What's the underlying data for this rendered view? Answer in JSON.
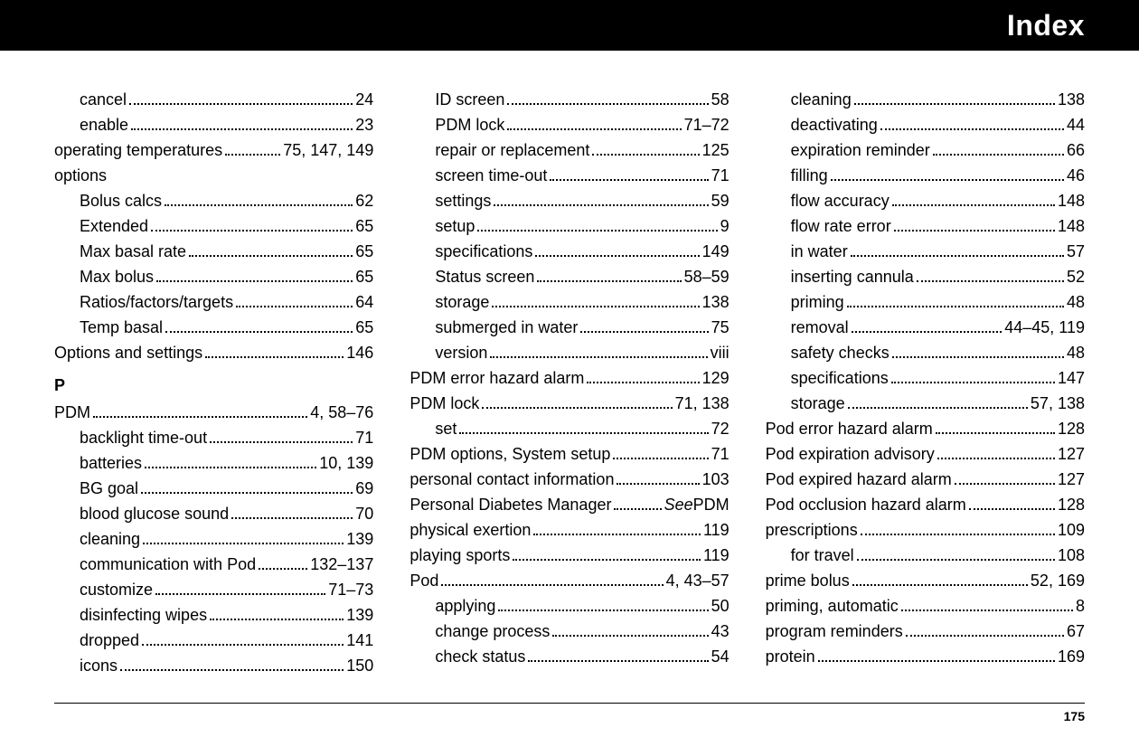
{
  "header": {
    "title": "Index"
  },
  "footer": {
    "pageNumber": "175"
  },
  "columns": [
    [
      {
        "label": "cancel",
        "page": "24",
        "indent": 1
      },
      {
        "label": "enable",
        "page": "23",
        "indent": 1
      },
      {
        "label": "operating temperatures",
        "page": "75, 147, 149",
        "indent": 0
      },
      {
        "label": "options",
        "page": "",
        "indent": 0,
        "noDots": true
      },
      {
        "label": "Bolus calcs",
        "page": "62",
        "indent": 1
      },
      {
        "label": "Extended",
        "page": "65",
        "indent": 1
      },
      {
        "label": "Max basal rate",
        "page": "65",
        "indent": 1
      },
      {
        "label": "Max bolus",
        "page": "65",
        "indent": 1
      },
      {
        "label": "Ratios/factors/targets",
        "page": "64",
        "indent": 1
      },
      {
        "label": "Temp basal",
        "page": "65",
        "indent": 1
      },
      {
        "label": "Options and settings",
        "page": " 146",
        "indent": 0
      },
      {
        "letter": "P"
      },
      {
        "label": "PDM",
        "page": "4, 58–76",
        "indent": 0
      },
      {
        "label": "backlight time-out",
        "page": "71",
        "indent": 1
      },
      {
        "label": "batteries",
        "page": "10, 139",
        "indent": 1
      },
      {
        "label": "BG goal",
        "page": "69",
        "indent": 1
      },
      {
        "label": "blood glucose sound",
        "page": "70",
        "indent": 1
      },
      {
        "label": "cleaning",
        "page": " 139",
        "indent": 1
      },
      {
        "label": "communication with Pod",
        "page": " 132–137",
        "indent": 1
      },
      {
        "label": "customize",
        "page": "71–73",
        "indent": 1
      },
      {
        "label": "disinfecting wipes",
        "page": " 139",
        "indent": 1
      },
      {
        "label": "dropped",
        "page": " 141",
        "indent": 1
      },
      {
        "label": "icons",
        "page": " 150",
        "indent": 1
      }
    ],
    [
      {
        "label": "ID screen",
        "page": "58",
        "indent": 1
      },
      {
        "label": "PDM lock",
        "page": "71–72",
        "indent": 1
      },
      {
        "label": "repair or replacement",
        "page": "125",
        "indent": 1
      },
      {
        "label": "screen time-out",
        "page": "71",
        "indent": 1
      },
      {
        "label": "settings",
        "page": "59",
        "indent": 1
      },
      {
        "label": "setup",
        "page": " 9",
        "indent": 1
      },
      {
        "label": "specifications",
        "page": "149",
        "indent": 1
      },
      {
        "label": "Status screen",
        "page": "58–59",
        "indent": 1
      },
      {
        "label": "storage",
        "page": "138",
        "indent": 1
      },
      {
        "label": "submerged in water",
        "page": "75",
        "indent": 1
      },
      {
        "label": "version",
        "page": "viii",
        "indent": 1
      },
      {
        "label": "PDM error hazard alarm",
        "page": "129",
        "indent": 0
      },
      {
        "label": "PDM lock",
        "page": "71, 138",
        "indent": 0
      },
      {
        "label": "set",
        "page": "72",
        "indent": 1
      },
      {
        "label": "PDM options, System setup",
        "page": "71",
        "indent": 0
      },
      {
        "label": "personal contact information",
        "page": "103",
        "indent": 0
      },
      {
        "label": "Personal Diabetes Manager",
        "page": "",
        "indent": 0,
        "seePrefix": "See",
        "seeTarget": " PDM"
      },
      {
        "label": "physical exertion",
        "page": "119",
        "indent": 0
      },
      {
        "label": "playing sports",
        "page": "119",
        "indent": 0
      },
      {
        "label": "Pod",
        "page": "4, 43–57",
        "indent": 0
      },
      {
        "label": "applying",
        "page": "50",
        "indent": 1
      },
      {
        "label": "change process",
        "page": "43",
        "indent": 1
      },
      {
        "label": "check status",
        "page": "54",
        "indent": 1
      }
    ],
    [
      {
        "label": "cleaning",
        "page": "138",
        "indent": 1
      },
      {
        "label": "deactivating",
        "page": "44",
        "indent": 1
      },
      {
        "label": "expiration reminder",
        "page": "66",
        "indent": 1
      },
      {
        "label": "filling",
        "page": "46",
        "indent": 1
      },
      {
        "label": "flow accuracy",
        "page": "148",
        "indent": 1
      },
      {
        "label": "flow rate error",
        "page": "148",
        "indent": 1
      },
      {
        "label": "in water",
        "page": "57",
        "indent": 1
      },
      {
        "label": "inserting cannula",
        "page": "52",
        "indent": 1
      },
      {
        "label": "priming",
        "page": "48",
        "indent": 1
      },
      {
        "label": "removal",
        "page": " 44–45, 119",
        "indent": 1
      },
      {
        "label": "safety checks",
        "page": "48",
        "indent": 1
      },
      {
        "label": "specifications",
        "page": "147",
        "indent": 1
      },
      {
        "label": "storage",
        "page": "57, 138",
        "indent": 1
      },
      {
        "label": "Pod error hazard alarm",
        "page": "128",
        "indent": 0
      },
      {
        "label": "Pod expiration advisory",
        "page": "127",
        "indent": 0
      },
      {
        "label": "Pod expired hazard alarm",
        "page": "127",
        "indent": 0
      },
      {
        "label": "Pod occlusion hazard alarm",
        "page": "128",
        "indent": 0
      },
      {
        "label": "prescriptions",
        "page": "109",
        "indent": 0
      },
      {
        "label": "for travel",
        "page": "108",
        "indent": 1
      },
      {
        "label": "prime bolus",
        "page": "52, 169",
        "indent": 0
      },
      {
        "label": "priming, automatic",
        "page": " 8",
        "indent": 0
      },
      {
        "label": "program reminders",
        "page": "67",
        "indent": 0
      },
      {
        "label": "protein",
        "page": "169",
        "indent": 0
      }
    ]
  ]
}
